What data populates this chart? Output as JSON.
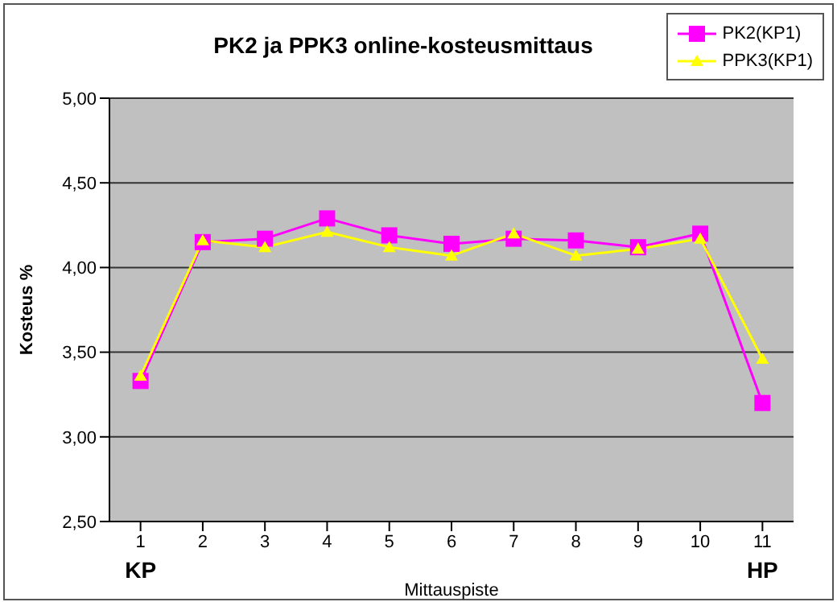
{
  "chart_data": {
    "type": "line",
    "title": "PK2 ja PPK3 online-kosteusmittaus",
    "xlabel": "Mittauspiste",
    "ylabel": "Kosteus %",
    "categories": [
      "1",
      "2",
      "3",
      "4",
      "5",
      "6",
      "7",
      "8",
      "9",
      "10",
      "11"
    ],
    "series": [
      {
        "name": "PK2(KP1)",
        "color": "#ff00ff",
        "marker": "square",
        "values": [
          3.33,
          4.15,
          4.17,
          4.29,
          4.19,
          4.14,
          4.17,
          4.16,
          4.12,
          4.2,
          3.2
        ]
      },
      {
        "name": "PPK3(KP1)",
        "color": "#ffff00",
        "marker": "triangle",
        "values": [
          3.36,
          4.16,
          4.12,
          4.21,
          4.12,
          4.07,
          4.2,
          4.07,
          4.11,
          4.17,
          3.46
        ]
      }
    ],
    "ylim": [
      2.5,
      5
    ],
    "yticks": [
      {
        "value": 2.5,
        "label": "2,50"
      },
      {
        "value": 3,
        "label": "3,00"
      },
      {
        "value": 3.5,
        "label": "3,50"
      },
      {
        "value": 4,
        "label": "4,00"
      },
      {
        "value": 4.5,
        "label": "4,50"
      },
      {
        "value": 5,
        "label": "5,00"
      }
    ],
    "grid": "y",
    "legend": "top right",
    "annotations": [
      "KP",
      "HP"
    ]
  }
}
